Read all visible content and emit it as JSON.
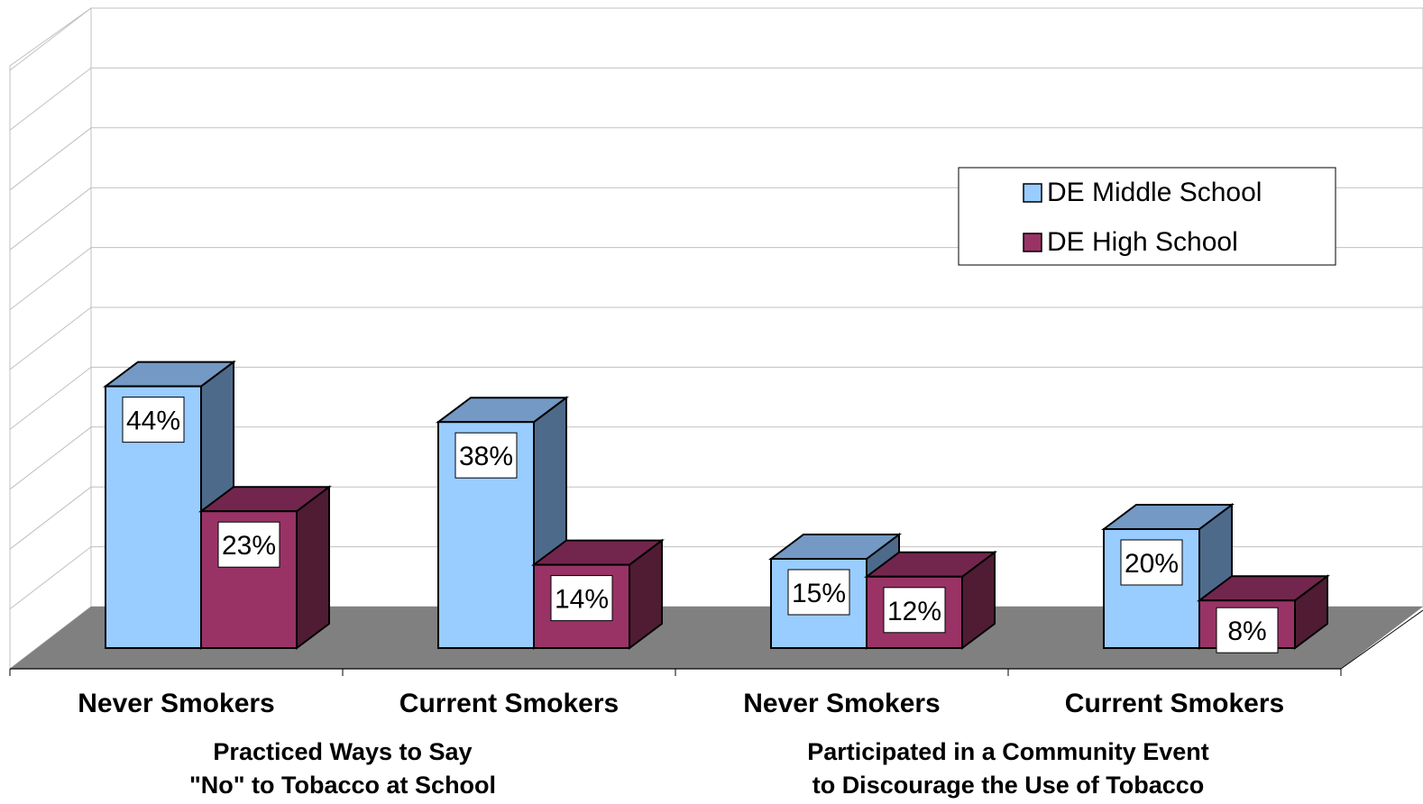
{
  "chart_data": {
    "type": "bar",
    "style": "3d-clustered-column",
    "categories": [
      "Never Smokers",
      "Current Smokers",
      "Never Smokers",
      "Current Smokers"
    ],
    "groups": [
      {
        "label": [
          "Practiced Ways to Say",
          "\"No\" to Tobacco at School"
        ],
        "categories": [
          0,
          1
        ]
      },
      {
        "label": [
          "Participated in a Community Event",
          "to Discourage the Use of Tobacco"
        ],
        "categories": [
          2,
          3
        ]
      }
    ],
    "series": [
      {
        "name": "DE Middle School",
        "values": [
          44,
          38,
          15,
          20
        ],
        "labels": [
          "44%",
          "38%",
          "15%",
          "20%"
        ],
        "color": "#99ccff",
        "side_color": "#4e6a8a",
        "top_color": "#7399c4"
      },
      {
        "name": "DE High School",
        "values": [
          23,
          14,
          12,
          8
        ],
        "labels": [
          "23%",
          "14%",
          "12%",
          "8%"
        ],
        "color": "#993366",
        "side_color": "#4f1c33",
        "top_color": "#73264d"
      }
    ],
    "ylim": [
      0,
      100
    ],
    "grid": true,
    "legend_position": "top-right",
    "floor_color": "#808080",
    "grid_color": "#c0c0c0"
  }
}
